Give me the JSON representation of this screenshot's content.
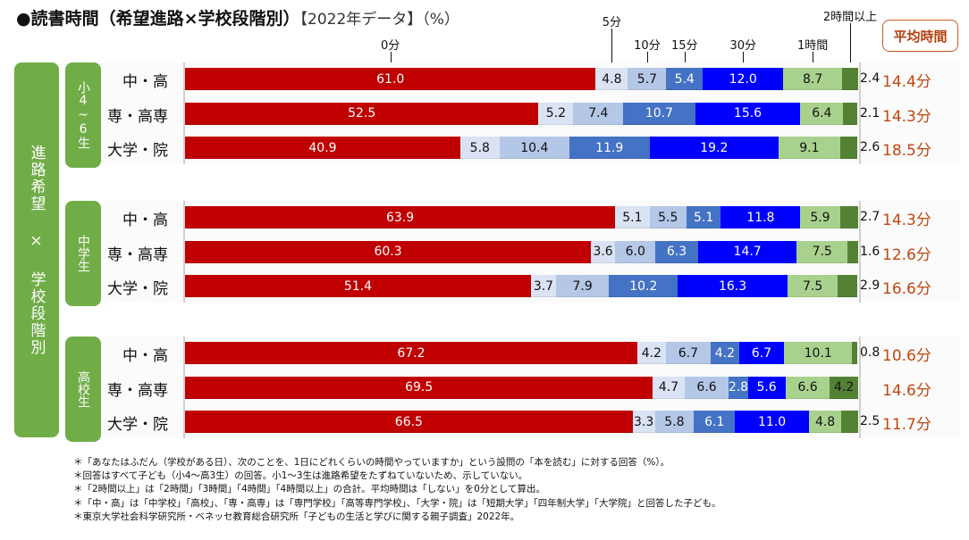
{
  "title": {
    "main": "●読書時間（希望進路×学校段階別）",
    "sub": "【2022年データ】（%）"
  },
  "avg_header": "平均時間",
  "outer_label": "進路希望 × 学校段階別",
  "chart_data": {
    "type": "bar",
    "stacked": true,
    "orientation": "horizontal",
    "title": "読書時間（希望進路×学校段階別）【2022年データ】（%）",
    "unit": "%",
    "xlim": [
      0,
      100
    ],
    "legend": {
      "placement": "top",
      "entries": [
        "0分",
        "5分",
        "10分",
        "15分",
        "30分",
        "1時間",
        "2時間以上"
      ]
    },
    "categories": [
      "0分",
      "5分",
      "10分",
      "15分",
      "30分",
      "1時間",
      "2時間以上"
    ],
    "colors": [
      "#c00000",
      "#dae3f3",
      "#b4c7e7",
      "#4472c4",
      "#0000ff",
      "#a9d18e",
      "#548235"
    ],
    "label_colors": [
      "#ffffff",
      "#111111",
      "#111111",
      "#ffffff",
      "#ffffff",
      "#111111",
      "#111111"
    ],
    "groups": [
      {
        "name": "小4~6生",
        "rows": [
          {
            "label": "中・高",
            "values": [
              61.0,
              4.8,
              5.7,
              5.4,
              12.0,
              8.7,
              2.4
            ],
            "avg": "14.4分"
          },
          {
            "label": "専・高専",
            "values": [
              52.5,
              5.2,
              7.4,
              10.7,
              15.6,
              6.4,
              2.1
            ],
            "avg": "14.3分"
          },
          {
            "label": "大学・院",
            "values": [
              40.9,
              5.8,
              10.4,
              11.9,
              19.2,
              9.1,
              2.6
            ],
            "avg": "18.5分"
          }
        ]
      },
      {
        "name": "中学生",
        "rows": [
          {
            "label": "中・高",
            "values": [
              63.9,
              5.1,
              5.5,
              5.1,
              11.8,
              5.9,
              2.7
            ],
            "avg": "14.3分"
          },
          {
            "label": "専・高専",
            "values": [
              60.3,
              3.6,
              6.0,
              6.3,
              14.7,
              7.5,
              1.6
            ],
            "avg": "12.6分"
          },
          {
            "label": "大学・院",
            "values": [
              51.4,
              3.7,
              7.9,
              10.2,
              16.3,
              7.5,
              2.9
            ],
            "avg": "16.6分"
          }
        ]
      },
      {
        "name": "高校生",
        "rows": [
          {
            "label": "中・高",
            "values": [
              67.2,
              4.2,
              6.7,
              4.2,
              6.7,
              10.1,
              0.8
            ],
            "avg": "10.6分"
          },
          {
            "label": "専・高専",
            "values": [
              69.5,
              4.7,
              6.6,
              2.8,
              5.6,
              6.6,
              4.2
            ],
            "avg": "14.6分"
          },
          {
            "label": "大学・院",
            "values": [
              66.5,
              3.3,
              5.8,
              6.1,
              11.0,
              4.8,
              2.5
            ],
            "avg": "11.7分"
          }
        ]
      }
    ]
  },
  "footnotes": [
    "＊「あなたはふだん（学校がある日）、次のことを、1日にどれくらいの時間やっていますか」という設問の「本を読む」に対する回答（%）。",
    "＊回答はすべて子ども（小4～高3生）の回答。小1～3生は進路希望をたずねていないため、示していない。",
    "＊「2時間以上」は「2時間」「3時間」「4時間」「4時間以上」の合計。平均時間は「しない」を0分として算出。",
    "＊「中・高」は「中学校」「高校」、「専・高専」は「専門学校」「高等専門学校」、「大学・院」は「短期大学」「四年制大学」「大学院」と回答した子ども。",
    "＊東京大学社会科学研究所・ベネッセ教育総合研究所「子どもの生活と学びに関する親子調査」2022年。"
  ]
}
